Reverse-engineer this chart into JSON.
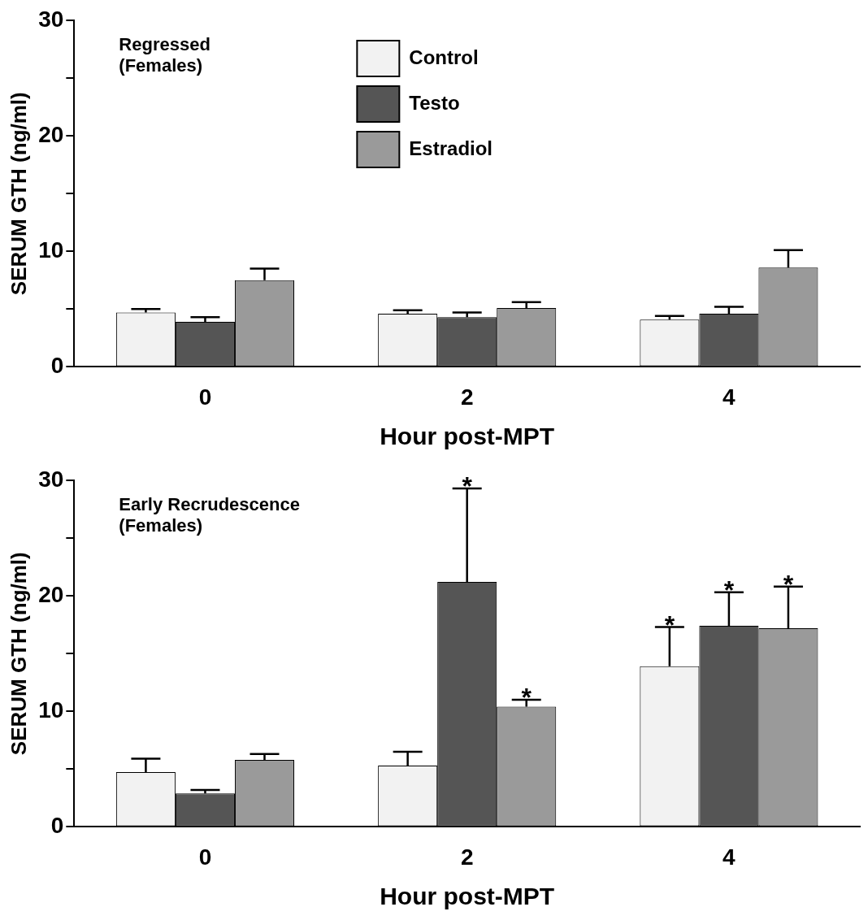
{
  "chart_data": [
    {
      "type": "bar",
      "title": "Regressed\n(Females)",
      "xlabel": "Hour post-MPT",
      "ylabel": "SERUM GTH (ng/ml)",
      "categories": [
        "0",
        "2",
        "4"
      ],
      "series": [
        {
          "name": "Control",
          "color": "#f2f2f2",
          "values": [
            4.7,
            4.6,
            4.1
          ],
          "errors": [
            [
              4.7,
              5.0
            ],
            [
              4.6,
              4.9
            ],
            [
              4.1,
              4.4
            ]
          ]
        },
        {
          "name": "Testo",
          "color": "#555555",
          "values": [
            3.9,
            4.3,
            4.6
          ],
          "errors": [
            [
              3.9,
              4.3
            ],
            [
              4.3,
              4.7
            ],
            [
              4.6,
              5.2
            ]
          ]
        },
        {
          "name": "Estradiol",
          "color": "#9a9a9a",
          "values": [
            7.5,
            5.1,
            8.6
          ],
          "errors": [
            [
              7.5,
              8.5
            ],
            [
              5.1,
              5.6
            ],
            [
              8.6,
              10.1
            ]
          ]
        }
      ],
      "ylim": [
        0,
        30
      ],
      "yticks": [
        0,
        {
          "value": 5,
          "label": null
        },
        10,
        {
          "value": 15,
          "label": null
        },
        20,
        {
          "value": 25,
          "label": null
        },
        30
      ],
      "legend": "top",
      "grid": false
    },
    {
      "type": "bar",
      "title": "Early Recrudescence\n(Females)",
      "xlabel": "Hour post-MPT",
      "ylabel": "SERUM GTH (ng/ml)",
      "categories": [
        "0",
        "2",
        "4"
      ],
      "series": [
        {
          "color": "#f2f2f2",
          "values": [
            4.75,
            5.3,
            13.9
          ],
          "errors": [
            [
              4.75,
              5.9
            ],
            [
              5.3,
              6.5
            ],
            [
              13.9,
              17.3
            ]
          ],
          "value_labels": [
            null,
            null,
            "*"
          ]
        },
        {
          "color": "#555555",
          "values": [
            2.9,
            21.2,
            17.4
          ],
          "errors": [
            [
              2.9,
              3.2
            ],
            [
              21.2,
              29.3
            ],
            [
              17.4,
              20.3
            ]
          ],
          "value_labels": [
            null,
            "*",
            "*"
          ]
        },
        {
          "color": "#9a9a9a",
          "values": [
            5.8,
            10.4,
            17.2
          ],
          "errors": [
            [
              5.8,
              6.3
            ],
            [
              10.4,
              11.0
            ],
            [
              17.2,
              20.8
            ]
          ],
          "value_labels": [
            null,
            "*",
            "*"
          ]
        }
      ],
      "ylim": [
        0,
        30
      ],
      "yticks": [
        0,
        {
          "value": 5,
          "label": null
        },
        10,
        {
          "value": 15,
          "label": null
        },
        20,
        {
          "value": 25,
          "label": null
        },
        30
      ],
      "legend": false,
      "grid": false
    }
  ]
}
